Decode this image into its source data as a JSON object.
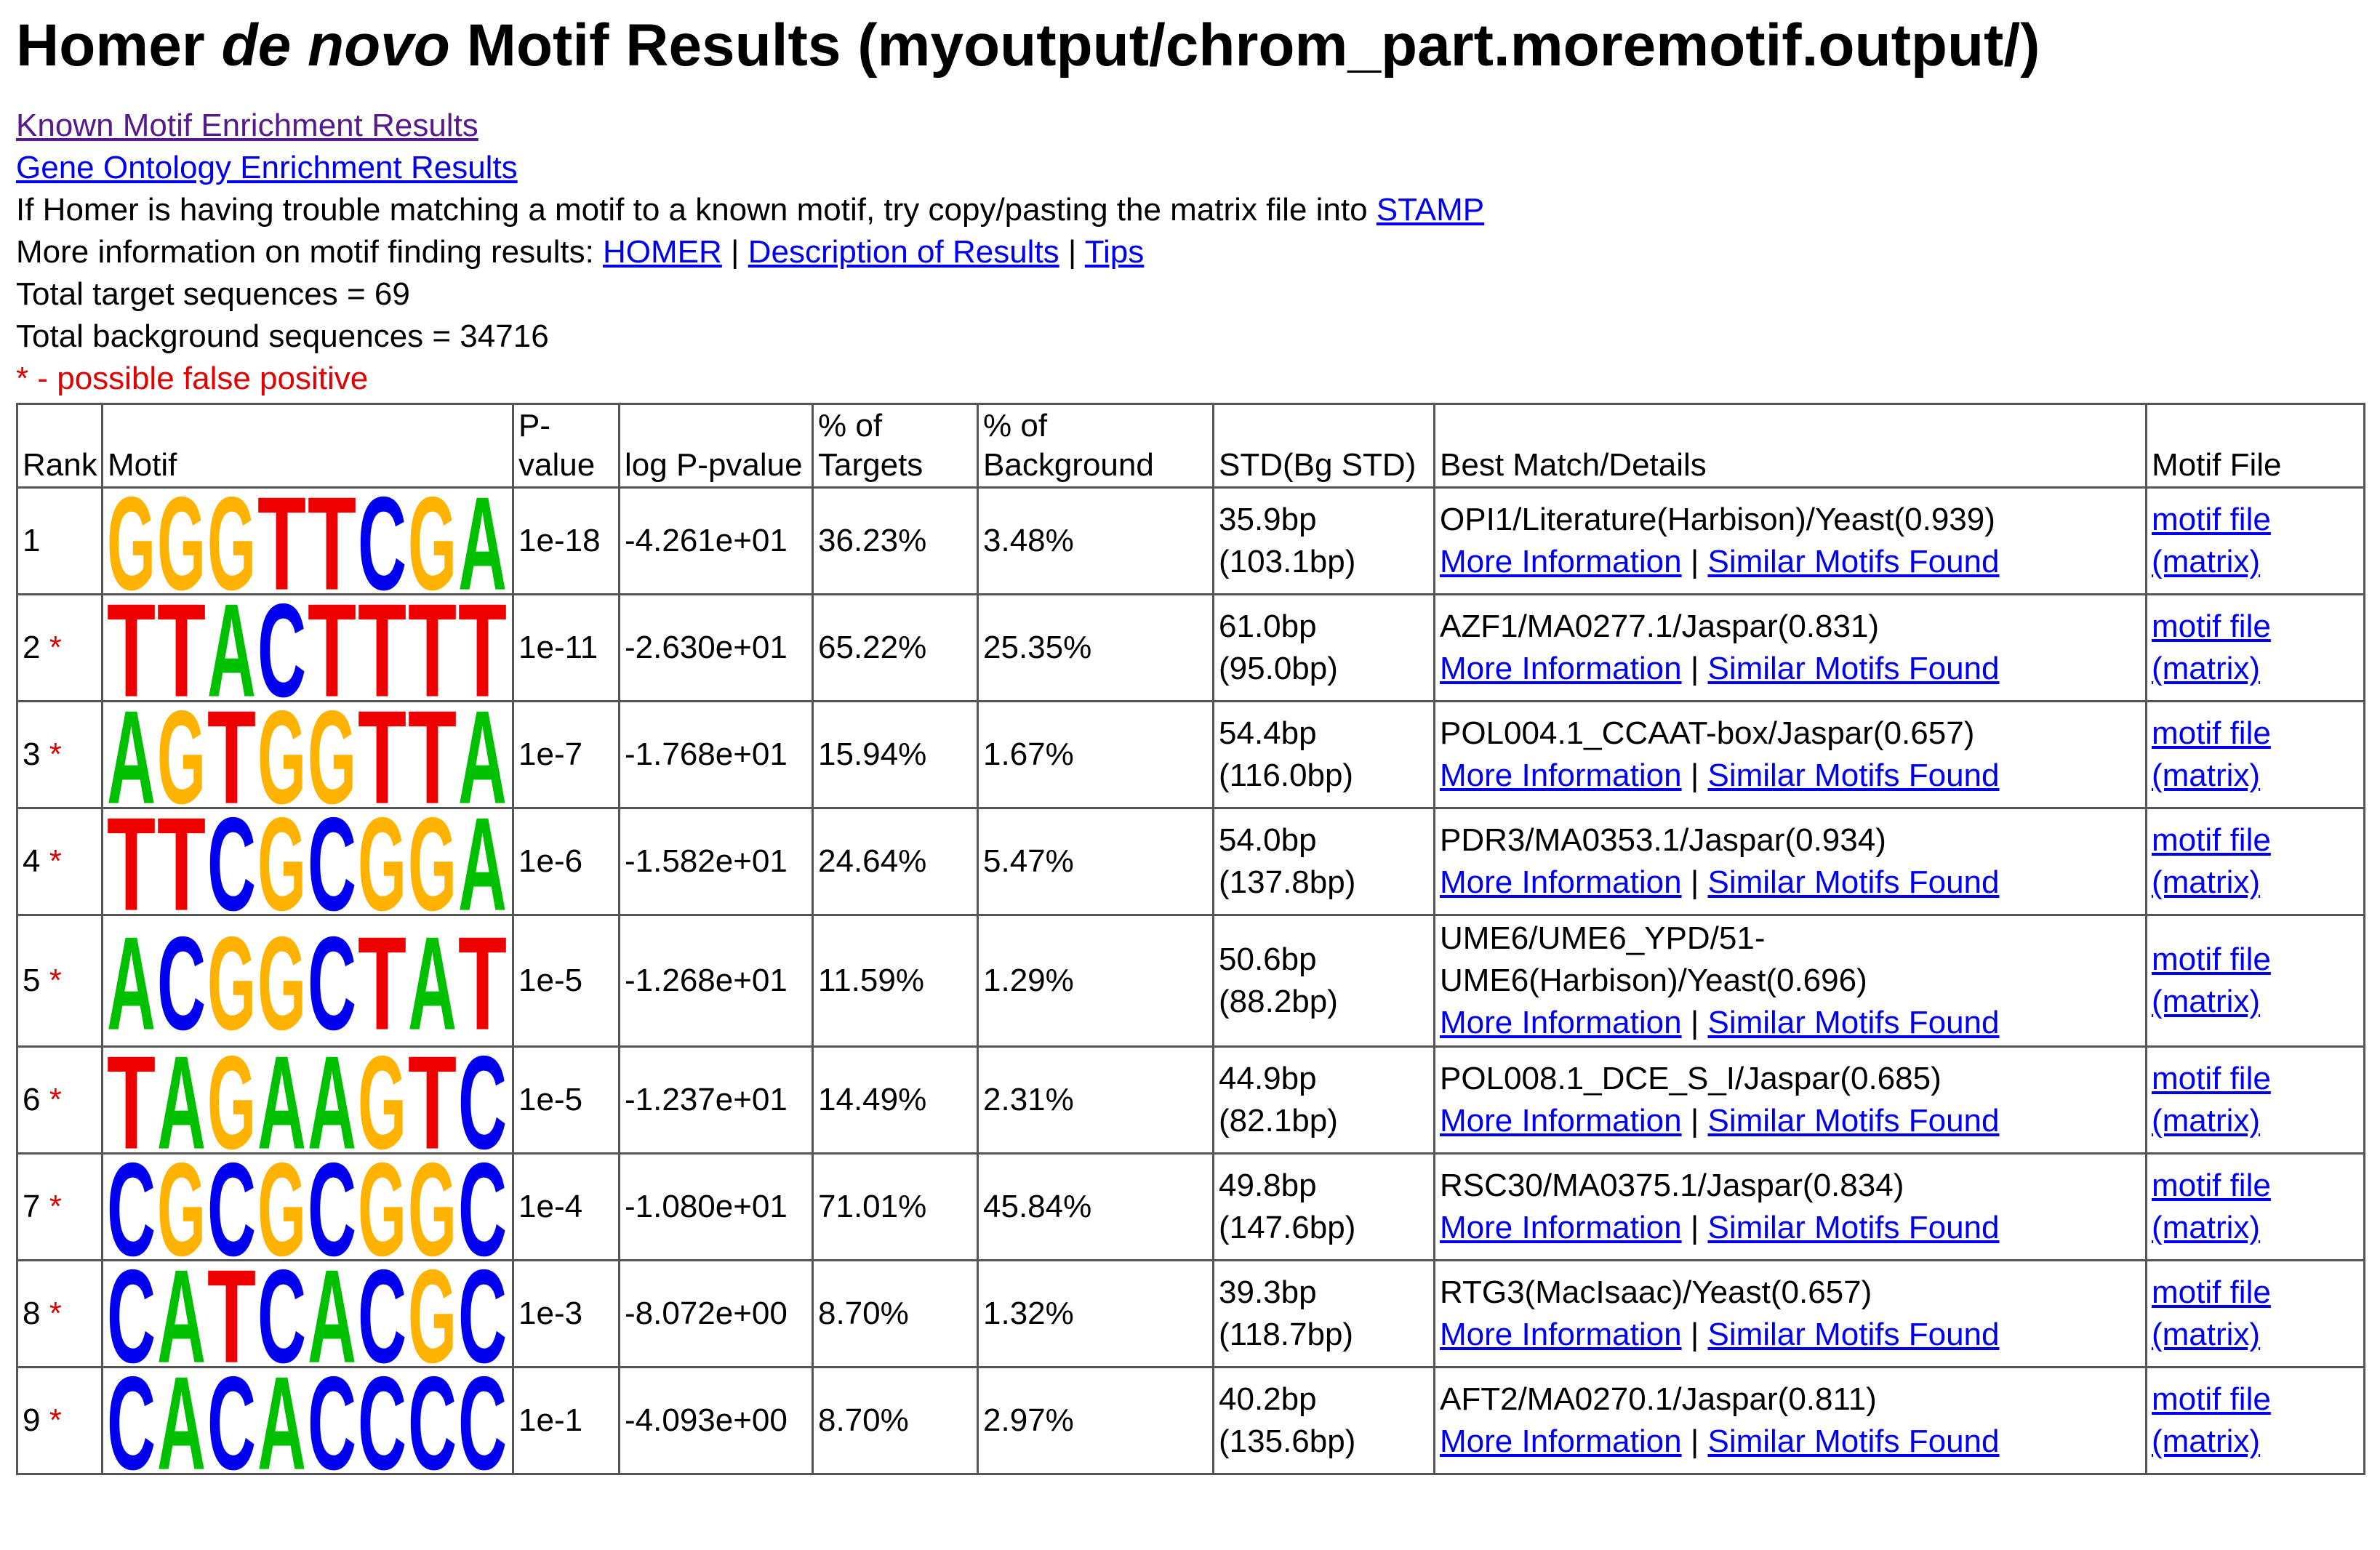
{
  "title": {
    "before": "Homer ",
    "italic": "de novo",
    "after": " Motif Results (myoutput/chrom_part.moremotif.output/)"
  },
  "links": {
    "known": "Known Motif Enrichment Results",
    "go": "Gene Ontology Enrichment Results"
  },
  "stamp_line": {
    "text": "If Homer is having trouble matching a motif to a known motif, try copy/pasting the matrix file into ",
    "link": "STAMP"
  },
  "info_line": {
    "text": "More information on motif finding results: ",
    "links": [
      "HOMER",
      "Description of Results",
      "Tips"
    ]
  },
  "separator": "|",
  "total_targets": "Total target sequences = 69",
  "total_background": "Total background sequences = 34716",
  "false_positive_note": "* - possible false positive",
  "table": {
    "headers": [
      "Rank",
      "Motif",
      "P-value",
      "log P-pvalue",
      "% of Targets",
      "% of Background",
      "STD(Bg STD)",
      "Best Match/Details",
      "Motif File"
    ],
    "rows": [
      {
        "rank": "1",
        "logo": "GGGTTCGA",
        "pvalue": "1e-18",
        "logp": "-4.261e+01",
        "targets": "36.23%",
        "background": "3.48%",
        "std": "35.9bp",
        "bgstd": "(103.1bp)",
        "match": "OPI1/Literature(Harbison)/Yeast(0.939)",
        "links": [
          "More Information",
          "Similar Motifs Found"
        ],
        "files": [
          "motif file",
          "(matrix)"
        ]
      },
      {
        "rank": "2",
        "flag": "*",
        "logo": "TTACTTTT",
        "pvalue": "1e-11",
        "logp": "-2.630e+01",
        "targets": "65.22%",
        "background": "25.35%",
        "std": "61.0bp",
        "bgstd": "(95.0bp)",
        "match": "AZF1/MA0277.1/Jaspar(0.831)",
        "links": [
          "More Information",
          "Similar Motifs Found"
        ],
        "files": [
          "motif file",
          "(matrix)"
        ]
      },
      {
        "rank": "3",
        "flag": "*",
        "logo": "AGTGGTTA",
        "pvalue": "1e-7",
        "logp": "-1.768e+01",
        "targets": "15.94%",
        "background": "1.67%",
        "std": "54.4bp",
        "bgstd": "(116.0bp)",
        "match": "POL004.1_CCAAT-box/Jaspar(0.657)",
        "links": [
          "More Information",
          "Similar Motifs Found"
        ],
        "files": [
          "motif file",
          "(matrix)"
        ]
      },
      {
        "rank": "4",
        "flag": "*",
        "logo": "TTCGCGGA",
        "pvalue": "1e-6",
        "logp": "-1.582e+01",
        "targets": "24.64%",
        "background": "5.47%",
        "std": "54.0bp",
        "bgstd": "(137.8bp)",
        "match": "PDR3/MA0353.1/Jaspar(0.934)",
        "links": [
          "More Information",
          "Similar Motifs Found"
        ],
        "files": [
          "motif file",
          "(matrix)"
        ]
      },
      {
        "rank": "5",
        "flag": "*",
        "logo": "ACGGCTAT",
        "pvalue": "1e-5",
        "logp": "-1.268e+01",
        "targets": "11.59%",
        "background": "1.29%",
        "std": "50.6bp",
        "bgstd": "(88.2bp)",
        "match": "UME6/UME6_YPD/51-UME6(Harbison)/Yeast(0.696)",
        "links": [
          "More Information",
          "Similar Motifs Found"
        ],
        "files": [
          "motif file",
          "(matrix)"
        ]
      },
      {
        "rank": "6",
        "flag": "*",
        "logo": "TAGAAGTC",
        "pvalue": "1e-5",
        "logp": "-1.237e+01",
        "targets": "14.49%",
        "background": "2.31%",
        "std": "44.9bp",
        "bgstd": "(82.1bp)",
        "match": "POL008.1_DCE_S_I/Jaspar(0.685)",
        "links": [
          "More Information",
          "Similar Motifs Found"
        ],
        "files": [
          "motif file",
          "(matrix)"
        ]
      },
      {
        "rank": "7",
        "flag": "*",
        "logo": "CGCGCGGC",
        "pvalue": "1e-4",
        "logp": "-1.080e+01",
        "targets": "71.01%",
        "background": "45.84%",
        "std": "49.8bp",
        "bgstd": "(147.6bp)",
        "match": "RSC30/MA0375.1/Jaspar(0.834)",
        "links": [
          "More Information",
          "Similar Motifs Found"
        ],
        "files": [
          "motif file",
          "(matrix)"
        ]
      },
      {
        "rank": "8",
        "flag": "*",
        "logo": "CATCACGC",
        "pvalue": "1e-3",
        "logp": "-8.072e+00",
        "targets": "8.70%",
        "background": "1.32%",
        "std": "39.3bp",
        "bgstd": "(118.7bp)",
        "match": "RTG3(MacIsaac)/Yeast(0.657)",
        "links": [
          "More Information",
          "Similar Motifs Found"
        ],
        "files": [
          "motif file",
          "(matrix)"
        ]
      },
      {
        "rank": "9",
        "flag": "*",
        "logo": "CACACCCC",
        "pvalue": "1e-1",
        "logp": "-4.093e+00",
        "targets": "8.70%",
        "background": "2.97%",
        "std": "40.2bp",
        "bgstd": "(135.6bp)",
        "match": "AFT2/MA0270.1/Jaspar(0.811)",
        "links": [
          "More Information",
          "Similar Motifs Found"
        ],
        "files": [
          "motif file",
          "(matrix)"
        ]
      }
    ]
  }
}
